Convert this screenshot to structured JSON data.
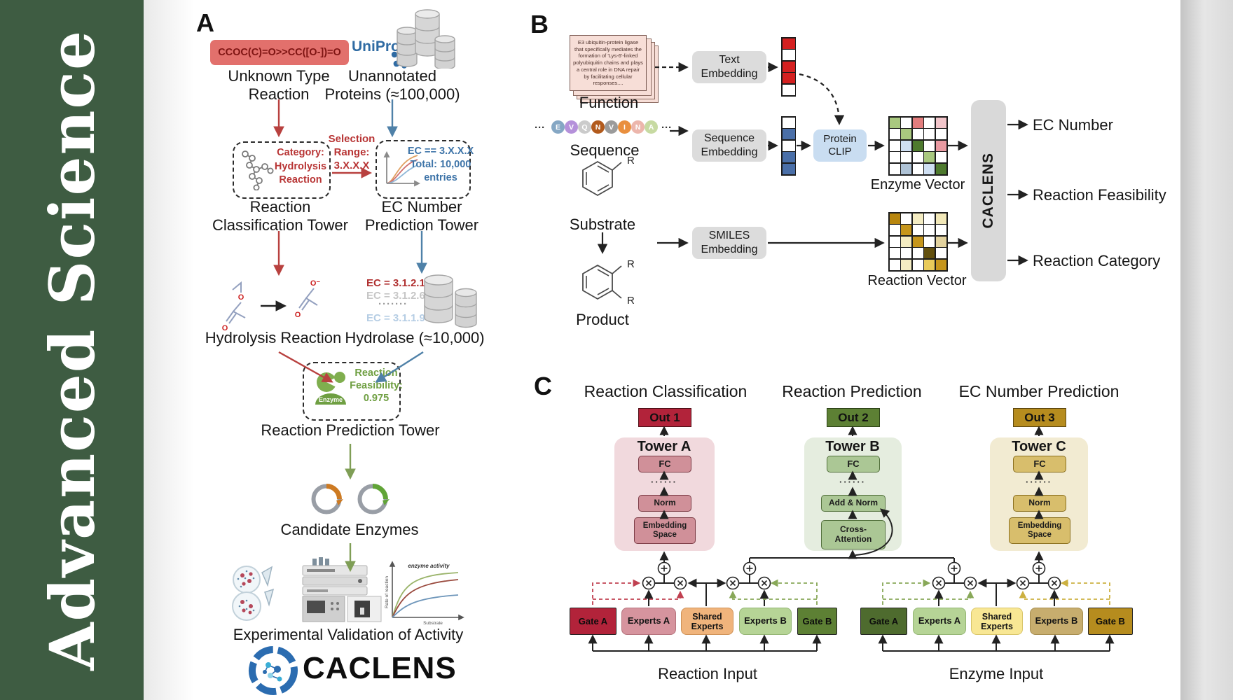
{
  "palette": {
    "sidebar_green": "#3e5c42",
    "red_accent": "#b8413f",
    "blue_accent": "#4f81a8",
    "green_arrow": "#7f9e56",
    "crimson": "#b2233a",
    "moe_green": "#5d8034",
    "gold": "#b68c1e",
    "uniprot_blue": "#2f6ba3"
  },
  "sidebar": {
    "journal": "Advanced Science"
  },
  "a": {
    "panel": "A",
    "smiles": "CCOC(C)=O>>CC([O-])=O",
    "unknown": "Unknown Type\nReaction",
    "uniprot": "UniProt",
    "unannotated": "Unannotated\nProteins (≈100,000)",
    "category": "Category:\nHydrolysis\nReaction",
    "selection": "Selection\nRange:\n3.X.X.X",
    "ec_filter": "EC == 3.X.X.X\nTotal: 10,000\nentries",
    "tower1": "Reaction\nClassification Tower",
    "tower2": "EC Number\nPrediction Tower",
    "ec_list": [
      "EC = 3.1.2.1",
      "EC = 3.1.2.6",
      "·······",
      "EC = 3.1.1.9"
    ],
    "hydrolysis": "Hydrolysis Reaction",
    "hydrolase": "Hydrolase (≈10,000)",
    "enzyme": "Enzyme",
    "feasibility": "Reaction\nFeasibility:\n0.975",
    "tower3": "Reaction Prediction Tower",
    "candidates": "Candidate Enzymes",
    "graph": {
      "title": "enzyme activity",
      "ylabel": "Rate of reaction",
      "xlabel": "Substrate"
    },
    "validation": "Experimental Validation of Activity",
    "brand": "CACLENS"
  },
  "b": {
    "panel": "B",
    "card_text": "E3 ubiquitin-protein ligase that specifically mediates the formation of 'Lys-6'-linked polyubiquitin chains and plays a central role in DNA repair by facilitating cellular responses....",
    "function": "Function",
    "dots_left": "···",
    "dots_right": "···",
    "sequence": {
      "letters": [
        "E",
        "V",
        "Q",
        "N",
        "V",
        "I",
        "N",
        "A"
      ],
      "colors": [
        "#85a7c4",
        "#b591da",
        "#cbcbcb",
        "#b25a1c",
        "#9b9b9b",
        "#e98f3e",
        "#ecb6ac",
        "#c7daa2"
      ]
    },
    "sequence_label": "Sequence",
    "substrate": "Substrate",
    "product": "Product",
    "r": "R",
    "text_embedding": "Text\nEmbedding",
    "sequence_embedding": "Sequence\nEmbedding",
    "smiles_embedding": "SMILES\nEmbedding",
    "protein_clip": "Protein\nCLIP",
    "text_vector": [
      "#d42020",
      "",
      "#d42020",
      "#d42020",
      ""
    ],
    "sequence_vector": [
      "",
      "#4a6fa8",
      "",
      "#4a6fa8",
      "#4a6fa8"
    ],
    "enzyme_matrix": [
      "#a9c87f",
      "",
      "#e27d7d",
      "",
      "#f2c5ca",
      "",
      "#a9c87f",
      "",
      "",
      "",
      "",
      "#cfdff2",
      "#4e7a2e",
      "",
      "#ea9aa2",
      "",
      "",
      "",
      "#a9c87f",
      "",
      "",
      "#afc3d6",
      "",
      "#cfdff2",
      "#4e7a2e"
    ],
    "reaction_matrix": [
      "#b8860e",
      "",
      "#f4ecc2",
      "",
      "#f2e8b8",
      "",
      "#c6961c",
      "",
      "",
      "",
      "",
      "#f4ecc2",
      "#c6961c",
      "",
      "#e2d29e",
      "",
      "",
      "",
      "#63500e",
      "",
      "",
      "#f4ecc2",
      "",
      "#e9cb5a",
      "#c6961c"
    ],
    "enzyme_vector_label": "Enzyme Vector",
    "reaction_vector_label": "Reaction Vector",
    "caclens": "CACLENS",
    "outputs": [
      "EC Number",
      "Reaction Feasibility",
      "Reaction Category"
    ]
  },
  "c": {
    "panel": "C",
    "headings": [
      "Reaction Classification",
      "Reaction Prediction",
      "EC Number Prediction"
    ],
    "outs": [
      "Out 1",
      "Out 2",
      "Out 3"
    ],
    "dots": "······",
    "towers": [
      {
        "title": "Tower A",
        "fc": "FC",
        "mid": "Norm",
        "base": "Embedding\nSpace"
      },
      {
        "title": "Tower B",
        "fc": "FC",
        "mid": "Add & Norm",
        "base": "Cross-\nAttention"
      },
      {
        "title": "Tower C",
        "fc": "FC",
        "mid": "Norm",
        "base": "Embedding\nSpace"
      }
    ],
    "moe": [
      {
        "gate_a": "Gate A",
        "experts_a": "Experts A",
        "shared": "Shared\nExperts",
        "experts_b": "Experts B",
        "gate_b": "Gate B",
        "input": "Reaction Input"
      },
      {
        "gate_a": "Gate A",
        "experts_a": "Experts A",
        "shared": "Shared\nExperts",
        "experts_b": "Experts B",
        "gate_b": "Gate B",
        "input": "Enzyme Input"
      }
    ]
  }
}
